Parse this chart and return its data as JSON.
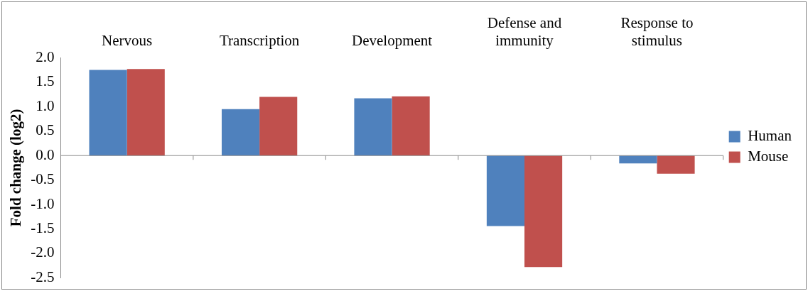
{
  "chart_data": {
    "type": "bar",
    "ylabel": "Fold change (log2)",
    "categories": [
      "Nervous",
      "Transcription",
      "Development",
      "Defense and immunity",
      "Response to stimulus"
    ],
    "series": [
      {
        "name": "Human",
        "color": "#4f81bd",
        "values": [
          1.75,
          0.95,
          1.17,
          -1.44,
          -0.16
        ]
      },
      {
        "name": "Mouse",
        "color": "#c0504d",
        "values": [
          1.77,
          1.2,
          1.21,
          -2.28,
          -0.37
        ]
      }
    ],
    "ylim": [
      -2.5,
      2
    ],
    "yticks": [
      {
        "value": 2,
        "label": "2.0"
      },
      {
        "value": 1.5,
        "label": "1.5"
      },
      {
        "value": 1,
        "label": "1.0"
      },
      {
        "value": 0.5,
        "label": "0.5"
      },
      {
        "value": 0,
        "label": "0.0"
      },
      {
        "value": -0.5,
        "label": "-0.5"
      },
      {
        "value": -1,
        "label": "-1.0"
      },
      {
        "value": -1.5,
        "label": "-1.5"
      },
      {
        "value": -2,
        "label": "-2.0"
      },
      {
        "value": -2.5,
        "label": "-2.5"
      }
    ],
    "ref_lines": [
      {
        "axis": "y",
        "value": 0,
        "color": "#888888"
      }
    ],
    "grid": false,
    "legend": "right"
  }
}
